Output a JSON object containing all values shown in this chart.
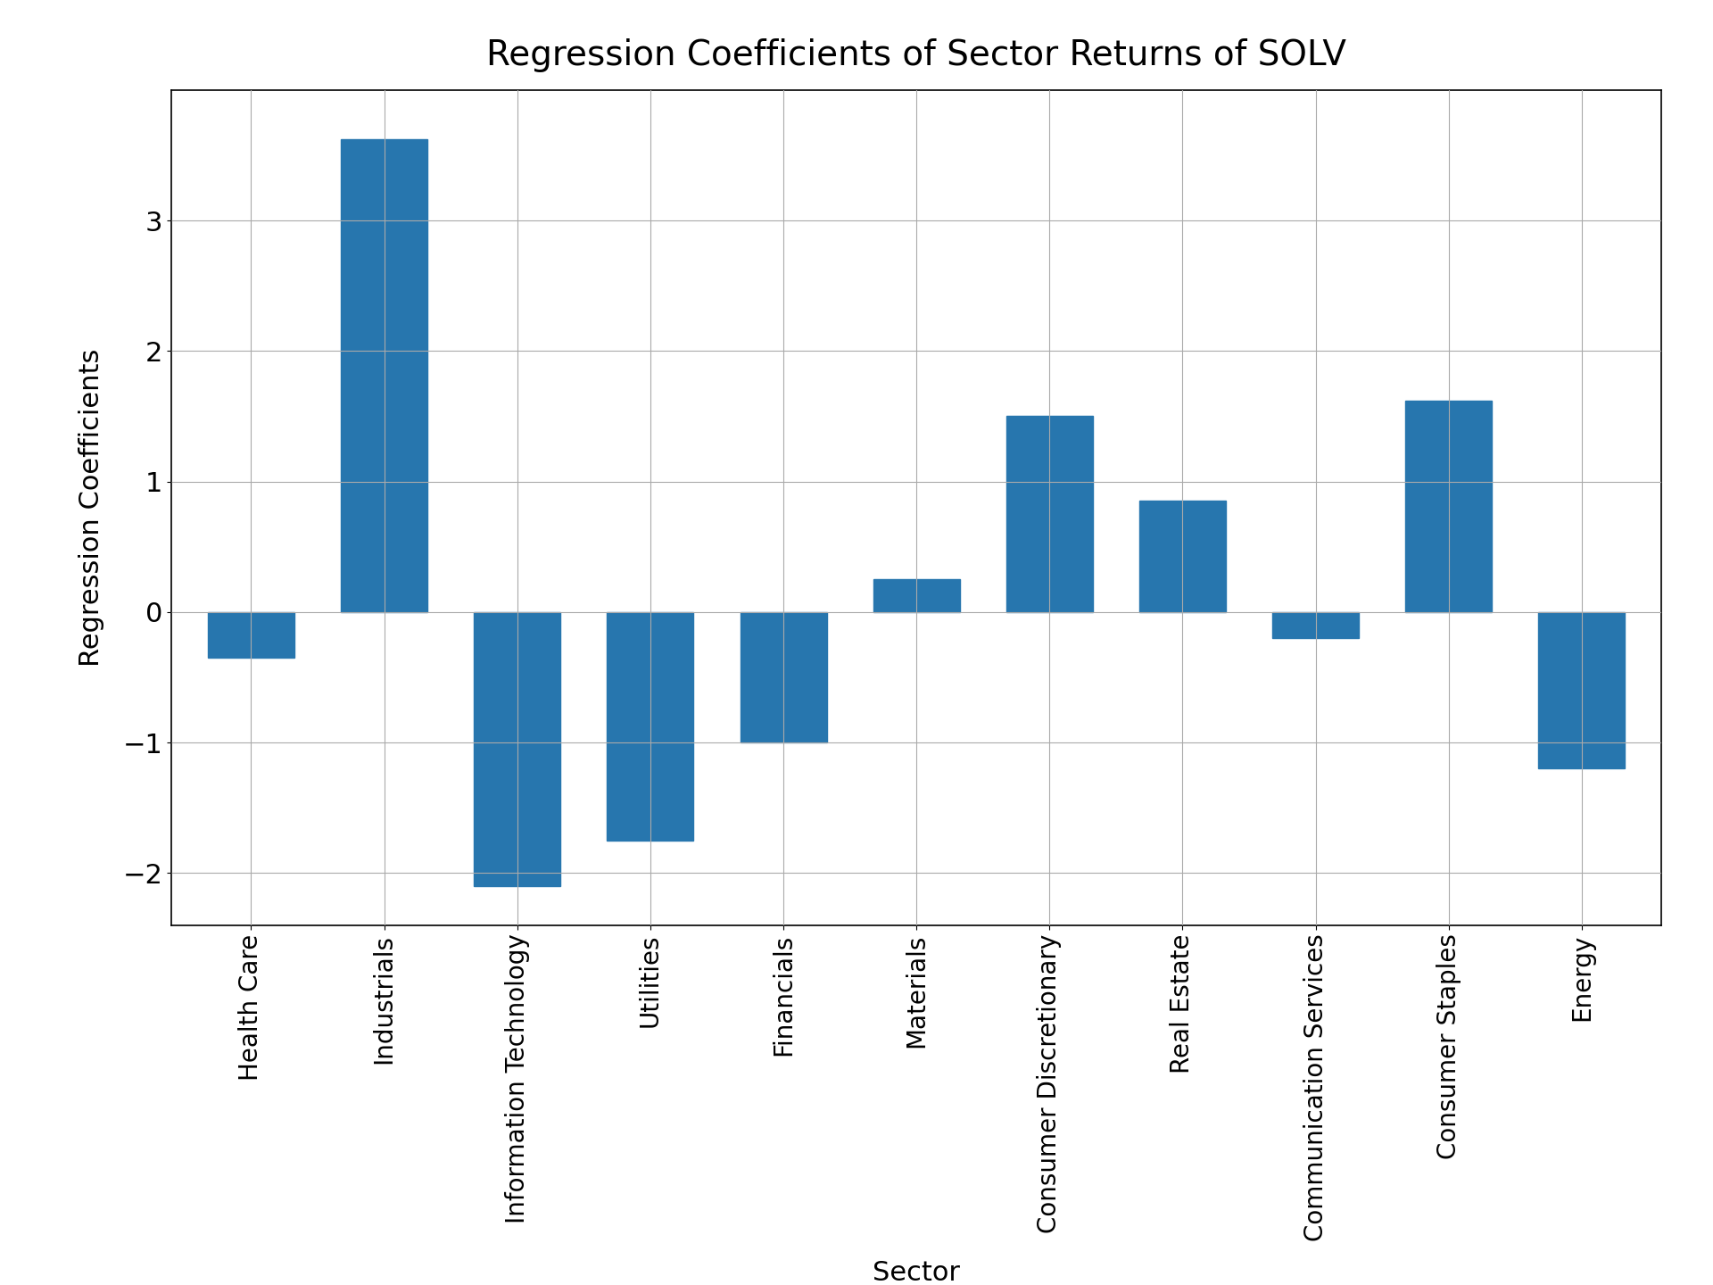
{
  "categories": [
    "Health Care",
    "Industrials",
    "Information Technology",
    "Utilities",
    "Financials",
    "Materials",
    "Consumer Discretionary",
    "Real Estate",
    "Communication Services",
    "Consumer Staples",
    "Energy"
  ],
  "values": [
    -0.35,
    3.62,
    -2.1,
    -1.75,
    -1.0,
    0.25,
    1.5,
    0.85,
    -0.2,
    1.62,
    -1.2
  ],
  "bar_color": "#2776ae",
  "title": "Regression Coefficients of Sector Returns of SOLV",
  "xlabel": "Sector",
  "ylabel": "Regression Coefficients",
  "title_fontsize": 28,
  "label_fontsize": 22,
  "tick_fontsize": 20,
  "ytick_fontsize": 22,
  "ylim": [
    -2.4,
    4.0
  ],
  "yticks": [
    -2,
    -1,
    0,
    1,
    2,
    3
  ],
  "background_color": "#ffffff",
  "grid_color": "#aaaaaa",
  "bar_width": 0.65
}
